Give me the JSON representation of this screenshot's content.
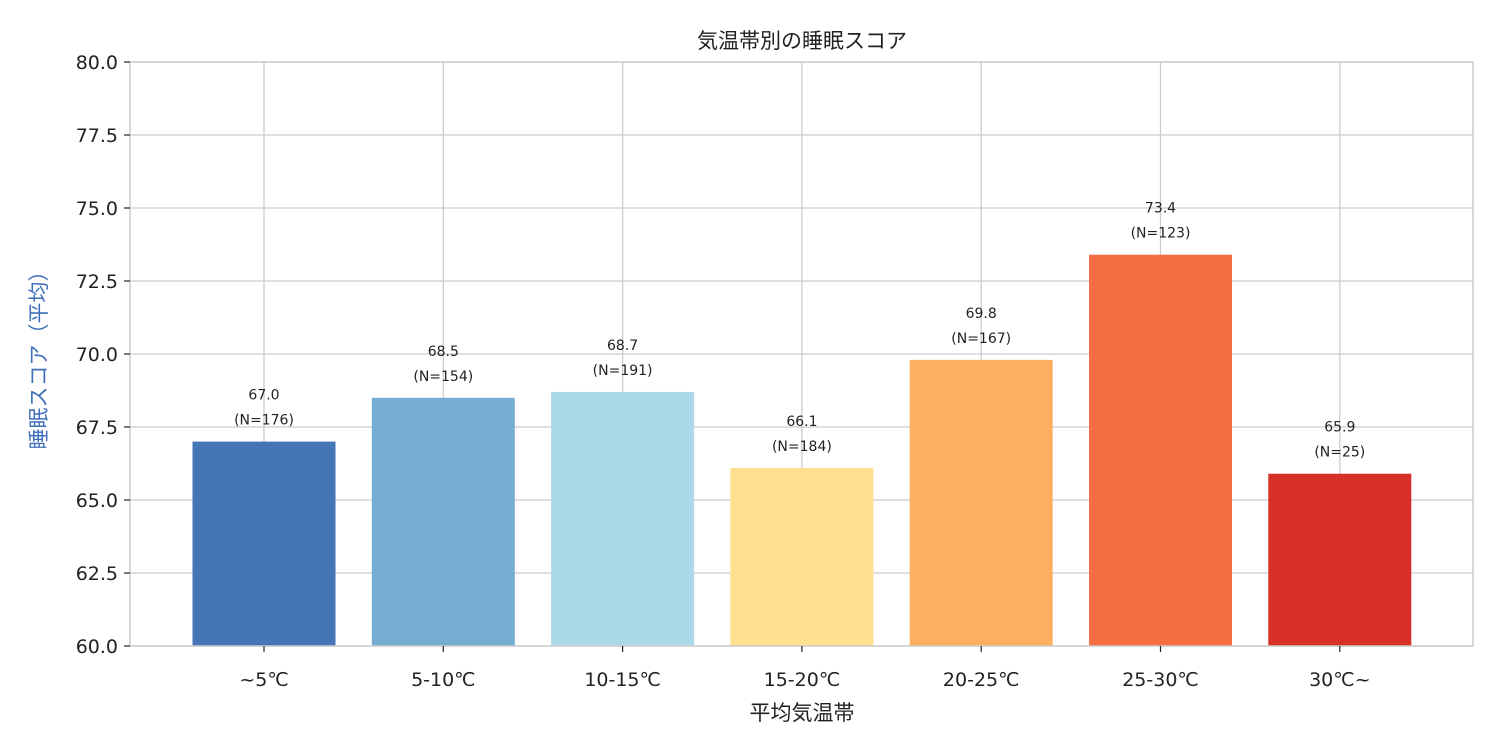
{
  "chart_data": {
    "type": "bar",
    "title": "気温帯別の睡眠スコア",
    "xlabel": "平均気温帯",
    "ylabel": "睡眠スコア（平均）",
    "ylabel_color": "#3f6fba",
    "categories": [
      "~5℃",
      "5-10℃",
      "10-15℃",
      "15-20℃",
      "20-25℃",
      "25-30℃",
      "30℃~"
    ],
    "values": [
      67.0,
      68.5,
      68.7,
      66.1,
      69.8,
      73.4,
      65.9
    ],
    "value_labels": [
      "67.0",
      "68.5",
      "68.7",
      "66.1",
      "69.8",
      "73.4",
      "65.9"
    ],
    "n_labels": [
      "(N=176)",
      "(N=154)",
      "(N=191)",
      "(N=184)",
      "(N=167)",
      "(N=123)",
      "(N=25)"
    ],
    "colors": [
      "#4575b4",
      "#74add1",
      "#abd9e9",
      "#fee090",
      "#fdae61",
      "#f46d43",
      "#d73027"
    ],
    "ylim": [
      60,
      80
    ],
    "yticks": [
      60.0,
      62.5,
      65.0,
      67.5,
      70.0,
      72.5,
      75.0,
      77.5,
      80.0
    ],
    "ytick_labels": [
      "60.0",
      "62.5",
      "65.0",
      "67.5",
      "70.0",
      "72.5",
      "75.0",
      "77.5",
      "80.0"
    ],
    "grid": true,
    "legend": "none"
  }
}
